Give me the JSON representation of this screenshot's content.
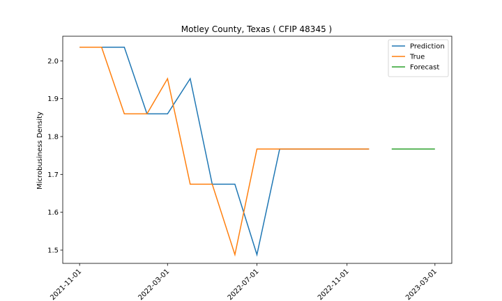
{
  "chart_data": {
    "type": "line",
    "title": "Motley County, Texas ( CFIP 48345 )",
    "xlabel": "",
    "ylabel": "Microbusiness Density",
    "x_ticks": [
      "2021-11-01",
      "2022-03-01",
      "2022-07-01",
      "2022-11-01",
      "2023-03-01"
    ],
    "x_range": [
      "2021-10-09",
      "2023-03-24"
    ],
    "y_ticks": [
      "1.5",
      "1.6",
      "1.7",
      "1.8",
      "1.9",
      "2.0"
    ],
    "ylim": [
      1.465,
      2.065
    ],
    "legend_position": "top-right",
    "grid": false,
    "series": [
      {
        "name": "Prediction",
        "color": "#1f77b4",
        "points": [
          [
            "2021-11-01",
            2.036
          ],
          [
            "2021-12-01",
            2.036
          ],
          [
            "2022-01-01",
            2.036
          ],
          [
            "2022-02-01",
            1.86
          ],
          [
            "2022-03-01",
            1.86
          ],
          [
            "2022-04-01",
            1.953
          ],
          [
            "2022-05-01",
            1.674
          ],
          [
            "2022-06-01",
            1.674
          ],
          [
            "2022-07-01",
            1.488
          ],
          [
            "2022-08-01",
            1.767
          ],
          [
            "2022-09-01",
            1.767
          ],
          [
            "2022-10-01",
            1.767
          ],
          [
            "2022-11-01",
            1.767
          ],
          [
            "2022-12-01",
            1.767
          ]
        ]
      },
      {
        "name": "True",
        "color": "#ff7f0e",
        "points": [
          [
            "2021-11-01",
            2.036
          ],
          [
            "2021-12-01",
            2.036
          ],
          [
            "2022-01-01",
            1.86
          ],
          [
            "2022-02-01",
            1.86
          ],
          [
            "2022-03-01",
            1.953
          ],
          [
            "2022-04-01",
            1.674
          ],
          [
            "2022-05-01",
            1.674
          ],
          [
            "2022-06-01",
            1.488
          ],
          [
            "2022-07-01",
            1.767
          ],
          [
            "2022-08-01",
            1.767
          ],
          [
            "2022-09-01",
            1.767
          ],
          [
            "2022-10-01",
            1.767
          ],
          [
            "2022-11-01",
            1.767
          ],
          [
            "2022-12-01",
            1.767
          ]
        ]
      },
      {
        "name": "Forecast",
        "color": "#2ca02c",
        "points": [
          [
            "2023-01-01",
            1.767
          ],
          [
            "2023-02-01",
            1.767
          ],
          [
            "2023-03-01",
            1.767
          ]
        ]
      }
    ]
  }
}
